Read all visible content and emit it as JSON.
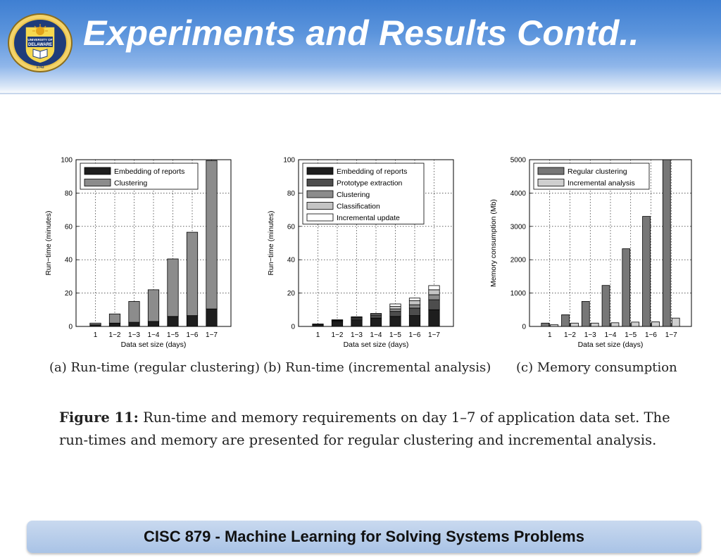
{
  "slide": {
    "title": "Experiments and Results Contd..",
    "logo": {
      "icon": "university-of-delaware-seal",
      "text_top": "UNIVERSITY OF",
      "text_main": "DELAWARE",
      "year": "1743"
    },
    "footer": "CISC 879 - Machine Learning for Solving Systems Problems"
  },
  "subcaptions": {
    "a": "(a)  Run-time (regular clustering)",
    "b": "(b)  Run-time (incremental analysis)",
    "c": "(c)  Memory consumption"
  },
  "figure_caption": {
    "label": "Figure 11:",
    "text": " Run-time and memory requirements on day 1–7 of application data set. The run-times and memory are presented for regular clustering and incremental analysis."
  },
  "colors": {
    "embedding": "#1e1e1e",
    "prototype": "#4d4d4d",
    "clustering": "#8c8c8c",
    "classification": "#c4c4c4",
    "incremental_update": "#ffffff",
    "regular_clustering": "#777777",
    "incremental_analysis": "#cfcfcf",
    "header_blue": "#3f7fd2"
  },
  "chart_data": [
    {
      "type": "bar",
      "stacked": true,
      "categories": [
        "1",
        "1−2",
        "1−3",
        "1−4",
        "1−5",
        "1−6",
        "1−7"
      ],
      "series": [
        {
          "name": "Embedding of reports",
          "values": [
            1,
            2,
            2.5,
            3,
            6,
            6.5,
            10.5
          ]
        },
        {
          "name": "Clustering",
          "values": [
            1,
            5.5,
            12.5,
            19,
            34.5,
            50,
            89
          ]
        }
      ],
      "xlabel": "Data set size (days)",
      "ylabel": "Run−time (minutes)",
      "ylim": [
        0,
        100
      ],
      "yticks": [
        0,
        20,
        40,
        60,
        80,
        100
      ],
      "grid": true,
      "legend": "top-left"
    },
    {
      "type": "bar",
      "stacked": true,
      "categories": [
        "1",
        "1−2",
        "1−3",
        "1−4",
        "1−5",
        "1−6",
        "1−7"
      ],
      "series": [
        {
          "name": "Embedding of reports",
          "values": [
            1.5,
            3,
            4,
            5,
            6,
            6.5,
            10
          ]
        },
        {
          "name": "Prototype extraction",
          "values": [
            0,
            0.5,
            1,
            1.5,
            3,
            4.5,
            6
          ]
        },
        {
          "name": "Clustering",
          "values": [
            0,
            0.3,
            0.5,
            0.8,
            1.5,
            2,
            3
          ]
        },
        {
          "name": "Classification",
          "values": [
            0,
            0.2,
            0.3,
            0.5,
            1.5,
            2.5,
            3
          ]
        },
        {
          "name": "Incremental update",
          "values": [
            0,
            0,
            0,
            0,
            1.5,
            1.5,
            2.5
          ]
        }
      ],
      "xlabel": "Data set size (days)",
      "ylabel": "Run−time (minutes)",
      "ylim": [
        0,
        100
      ],
      "yticks": [
        0,
        20,
        40,
        60,
        80,
        100
      ],
      "grid": true,
      "legend": "top-left"
    },
    {
      "type": "bar",
      "stacked": false,
      "categories": [
        "1",
        "1−2",
        "1−3",
        "1−4",
        "1−5",
        "1−6",
        "1−7"
      ],
      "series": [
        {
          "name": "Regular clustering",
          "values": [
            100,
            350,
            750,
            1230,
            2330,
            3300,
            5000
          ]
        },
        {
          "name": "Incremental analysis",
          "values": [
            50,
            100,
            100,
            110,
            130,
            140,
            250
          ]
        }
      ],
      "xlabel": "Data set size (days)",
      "ylabel": "Memory consumption (Mb)",
      "ylim": [
        0,
        5000
      ],
      "yticks": [
        0,
        1000,
        2000,
        3000,
        4000,
        5000
      ],
      "grid": true,
      "legend": "top-left"
    }
  ]
}
